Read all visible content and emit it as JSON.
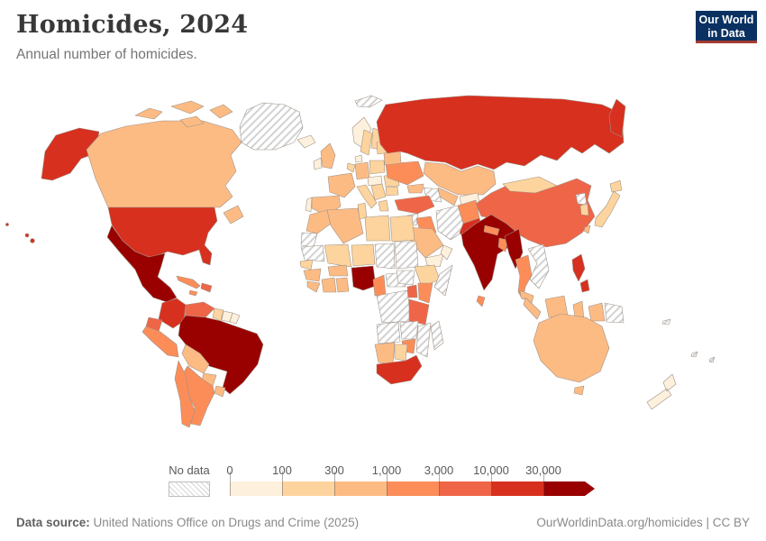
{
  "header": {
    "title": "Homicides, 2024",
    "subtitle": "Annual number of homicides."
  },
  "logo": {
    "line1": "Our World",
    "line2": "in Data",
    "bg_color": "#0a3161",
    "accent_color": "#a53a33"
  },
  "legend": {
    "no_data_label": "No data",
    "ticks": [
      "0",
      "100",
      "300",
      "1,000",
      "3,000",
      "10,000",
      "30,000"
    ]
  },
  "footer": {
    "source_label": "Data source:",
    "source_text": " United Nations Office on Drugs and Crime (2025)",
    "right_text": "OurWorldinData.org/homicides | CC BY"
  },
  "chart_data": {
    "type": "choropleth",
    "title": "Homicides, 2024",
    "unit": "annual number of homicides",
    "bins": [
      {
        "label": "0-100",
        "color": "#fdf0dc"
      },
      {
        "label": "100-300",
        "color": "#fdd49e"
      },
      {
        "label": "300-1,000",
        "color": "#fdbb84"
      },
      {
        "label": "1,000-3,000",
        "color": "#fc8d59"
      },
      {
        "label": "3,000-10,000",
        "color": "#ef6548"
      },
      {
        "label": "10,000-30,000",
        "color": "#d7301f"
      },
      {
        "label": "30,000+",
        "color": "#990000"
      }
    ],
    "countries": {
      "united-states": "10,000-30,000",
      "canada": "300-1,000",
      "greenland": "no-data",
      "mexico": "30,000+",
      "guatemala": "10,000-30,000",
      "honduras-nicaragua": "1,000-3,000",
      "costa-rica-panama": "1,000-3,000",
      "cuba": "1,000-3,000",
      "hispaniola": "3,000-10,000",
      "jamaica": "1,000-3,000",
      "colombia": "10,000-30,000",
      "venezuela": "3,000-10,000",
      "guyana": "100-300",
      "suriname": "0-100",
      "french-guiana": "0-100",
      "ecuador": "3,000-10,000",
      "peru": "1,000-3,000",
      "brazil": "30,000+",
      "bolivia": "300-1,000",
      "paraguay": "300-1,000",
      "uruguay": "300-1,000",
      "argentina": "1,000-3,000",
      "chile": "1,000-3,000",
      "iceland": "0-100",
      "norway": "0-100",
      "sweden": "100-300",
      "finland": "100-300",
      "denmark": "0-100",
      "united-kingdom": "300-1,000",
      "ireland": "0-100",
      "france": "300-1,000",
      "spain": "300-1,000",
      "portugal": "0-100",
      "germany": "300-1,000",
      "benelux": "100-300",
      "poland": "100-300",
      "czech-austria": "0-100",
      "italy": "100-300",
      "balkans": "100-300",
      "romania": "100-300",
      "bulgaria": "100-300",
      "greece": "100-300",
      "ukraine": "1,000-3,000",
      "belarus": "300-1,000",
      "baltics": "100-300",
      "svalbard": "no-data",
      "russia": "10,000-30,000",
      "kazakhstan": "300-1,000",
      "uzbekistan": "300-1,000",
      "turkmenistan": "no-data",
      "kyrgyzstan-tajikistan": "0-100",
      "caucasus": "300-1,000",
      "turkey": "3,000-10,000",
      "syria": "no-data",
      "iraq": "1,000-3,000",
      "iran": "no-data",
      "saudi-arabia": "300-1,000",
      "yemen": "0-100",
      "oman": "0-100",
      "jordan-israel": "100-300",
      "egypt": "100-300",
      "afghanistan": "1,000-3,000",
      "pakistan": "10,000-30,000",
      "india": "30,000+",
      "nepal": "1,000-3,000",
      "bangladesh": "1,000-3,000",
      "sri-lanka": "1,000-3,000",
      "china": "3,000-10,000",
      "mongolia": "100-300",
      "myanmar": "30,000+",
      "thailand": "1,000-3,000",
      "laos-vietnam-cambodia": "no-data",
      "malaysia": "300-1,000",
      "indonesia": "300-1,000",
      "papua-new-guinea": "no-data",
      "philippines": "10,000-30,000",
      "taiwan": "300-1,000",
      "south-korea": "100-300",
      "north-korea": "no-data",
      "japan": "100-300",
      "morocco": "300-1,000",
      "western-sahara": "no-data",
      "algeria": "300-1,000",
      "tunisia": "100-300",
      "libya": "100-300",
      "mauritania": "no-data",
      "mali": "100-300",
      "niger": "100-300",
      "chad": "no-data",
      "sudan": "no-data",
      "south-sudan": "no-data",
      "senegal": "100-300",
      "guinea": "300-1,000",
      "sierra-leone-liberia": "300-1,000",
      "ivory-coast": "300-1,000",
      "ghana": "300-1,000",
      "burkina-faso": "300-1,000",
      "nigeria": "30,000+",
      "cameroon": "1,000-3,000",
      "central-african-republic": "no-data",
      "ethiopia": "100-300",
      "somalia": "no-data",
      "dr-congo": "no-data",
      "uganda": "3,000-10,000",
      "kenya": "1,000-3,000",
      "tanzania": "3,000-10,000",
      "angola": "no-data",
      "zambia": "no-data",
      "mozambique": "no-data",
      "zimbabwe": "1,000-3,000",
      "namibia": "300-1,000",
      "botswana": "100-300",
      "south-africa": "10,000-30,000",
      "madagascar": "no-data",
      "australia": "300-1,000",
      "tasmania": "300-1,000",
      "new-zealand": "0-100",
      "solomon-islands": "no-data",
      "vanuatu": "no-data",
      "fiji": "no-data"
    }
  }
}
